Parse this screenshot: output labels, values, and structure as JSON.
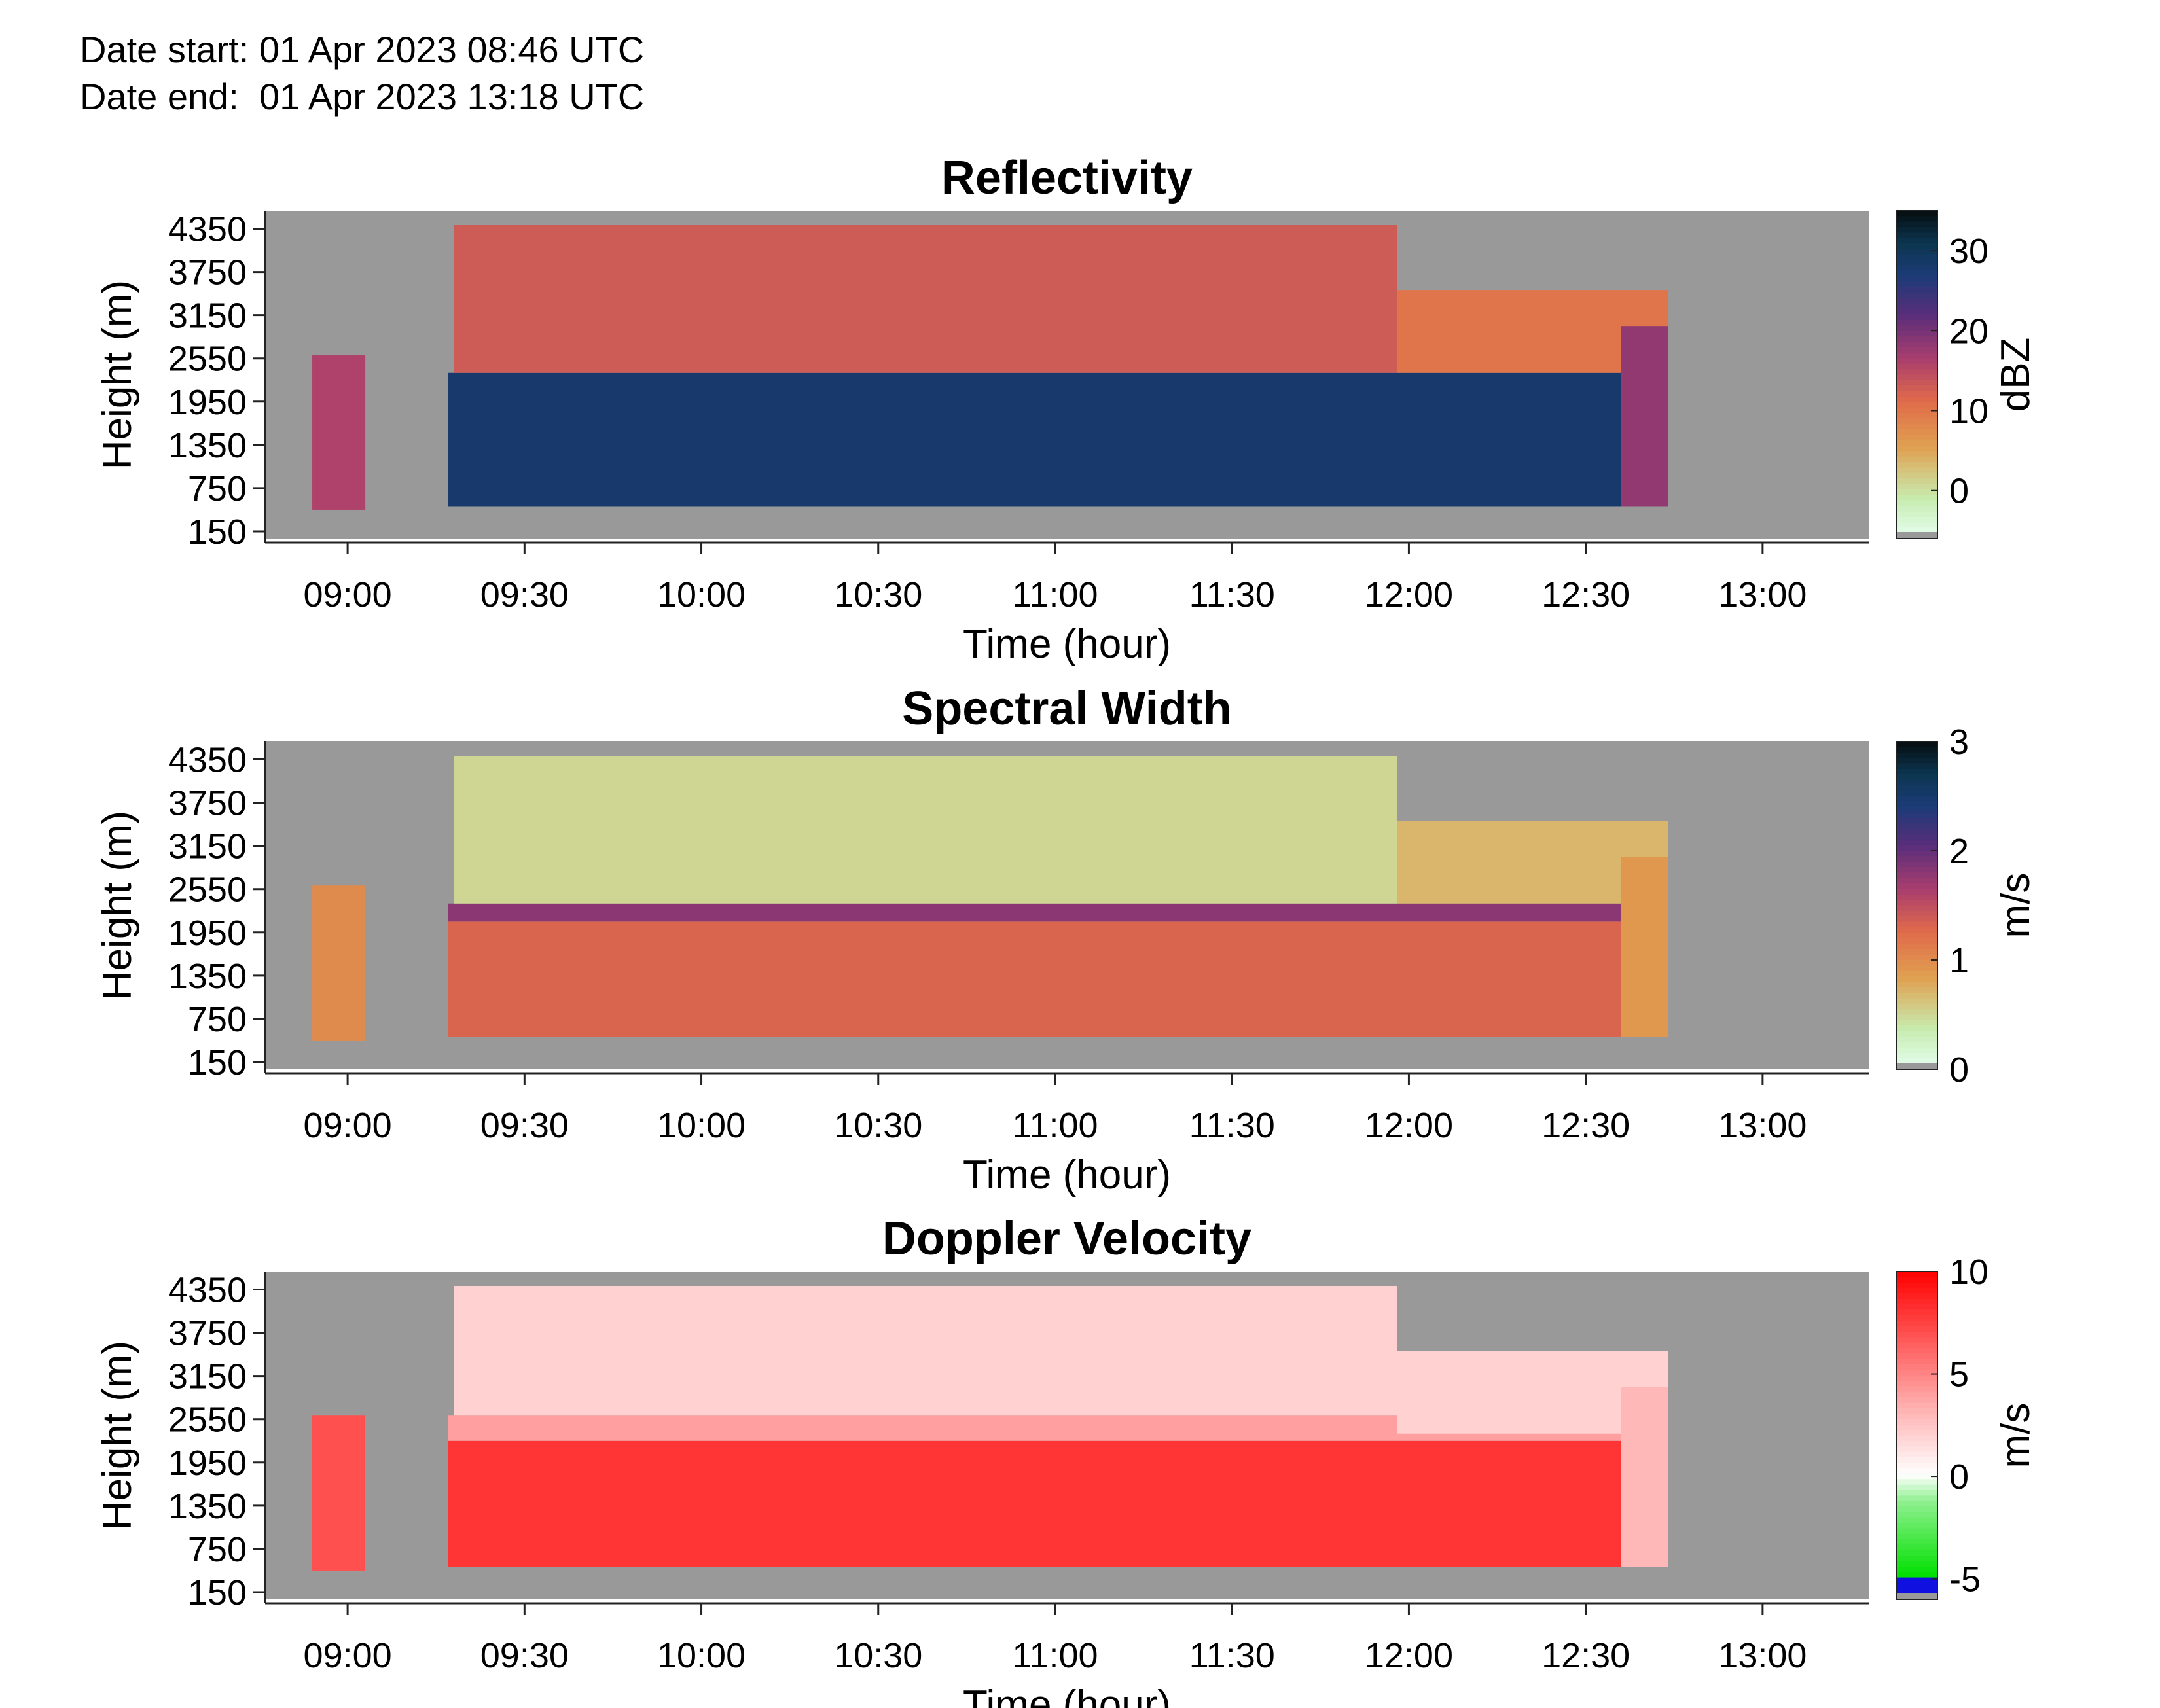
{
  "header": {
    "date_start": "Date start: 01 Apr 2023 08:46 UTC",
    "date_end": "Date end:  01 Apr 2023 13:18 UTC"
  },
  "chart_data": [
    {
      "type": "heatmap",
      "title": "Reflectivity",
      "xlabel": "Time (hour)",
      "ylabel": "Height (m)",
      "colorbar_label": "dBZ",
      "colormap": "thermal (light cyan → orange → red → purple → navy → black)",
      "clim": [
        -6,
        35
      ],
      "colorbar_ticks": [
        0,
        10,
        20,
        30
      ],
      "x_ticks": [
        "09:00",
        "09:30",
        "10:00",
        "10:30",
        "11:00",
        "11:30",
        "12:00",
        "12:30",
        "13:00"
      ],
      "y_ticks": [
        150,
        750,
        1350,
        1950,
        2550,
        3150,
        3750,
        4350
      ],
      "ylim": [
        50,
        4600
      ],
      "xlim": [
        "08:46",
        "13:18"
      ],
      "no_data_color": "#999999",
      "regions": [
        {
          "t_start": "08:54",
          "t_end": "09:03",
          "h_min": 450,
          "h_max": 2600,
          "value": 16
        },
        {
          "t_start": "09:17",
          "t_end": "12:36",
          "h_min": 500,
          "h_max": 2350,
          "value": 28
        },
        {
          "t_start": "09:18",
          "t_end": "11:58",
          "h_min": 2350,
          "h_max": 4400,
          "value": 13
        },
        {
          "t_start": "11:58",
          "t_end": "12:44",
          "h_min": 2350,
          "h_max": 3500,
          "value": 10
        },
        {
          "t_start": "12:36",
          "t_end": "12:44",
          "h_min": 500,
          "h_max": 3000,
          "value": 18
        }
      ]
    },
    {
      "type": "heatmap",
      "title": "Spectral Width",
      "xlabel": "Time (hour)",
      "ylabel": "Height (m)",
      "colorbar_label": "m/s",
      "colormap": "thermal (light cyan → orange → red → purple → navy → black)",
      "clim": [
        0,
        3
      ],
      "colorbar_ticks": [
        0,
        1,
        2,
        3
      ],
      "x_ticks": [
        "09:00",
        "09:30",
        "10:00",
        "10:30",
        "11:00",
        "11:30",
        "12:00",
        "12:30",
        "13:00"
      ],
      "y_ticks": [
        150,
        750,
        1350,
        1950,
        2550,
        3150,
        3750,
        4350
      ],
      "ylim": [
        50,
        4600
      ],
      "xlim": [
        "08:46",
        "13:18"
      ],
      "no_data_color": "#999999",
      "regions": [
        {
          "t_start": "08:54",
          "t_end": "09:03",
          "h_min": 450,
          "h_max": 2600,
          "value": 1.0
        },
        {
          "t_start": "09:17",
          "t_end": "12:36",
          "h_min": 500,
          "h_max": 2100,
          "value": 1.3
        },
        {
          "t_start": "09:17",
          "t_end": "12:36",
          "h_min": 2100,
          "h_max": 2350,
          "value": 1.8
        },
        {
          "t_start": "09:18",
          "t_end": "11:58",
          "h_min": 2350,
          "h_max": 4400,
          "value": 0.5
        },
        {
          "t_start": "11:58",
          "t_end": "12:44",
          "h_min": 2350,
          "h_max": 3500,
          "value": 0.7
        },
        {
          "t_start": "12:36",
          "t_end": "12:44",
          "h_min": 500,
          "h_max": 3000,
          "value": 0.9
        }
      ]
    },
    {
      "type": "heatmap",
      "title": "Doppler Velocity",
      "xlabel": "Time (hour)",
      "ylabel": "Height (m)",
      "colorbar_label": "m/s",
      "colormap": "blue → green → white → red",
      "clim": [
        -6,
        10
      ],
      "colorbar_ticks": [
        -5,
        0,
        5,
        10
      ],
      "x_ticks": [
        "09:00",
        "09:30",
        "10:00",
        "10:30",
        "11:00",
        "11:30",
        "12:00",
        "12:30",
        "13:00"
      ],
      "y_ticks": [
        150,
        750,
        1350,
        1950,
        2550,
        3150,
        3750,
        4350
      ],
      "ylim": [
        50,
        4600
      ],
      "xlim": [
        "08:46",
        "13:18"
      ],
      "no_data_color": "#999999",
      "regions": [
        {
          "t_start": "08:54",
          "t_end": "09:03",
          "h_min": 450,
          "h_max": 2600,
          "value": 7
        },
        {
          "t_start": "09:17",
          "t_end": "12:36",
          "h_min": 500,
          "h_max": 2250,
          "value": 8
        },
        {
          "t_start": "09:17",
          "t_end": "12:36",
          "h_min": 2250,
          "h_max": 2600,
          "value": 4
        },
        {
          "t_start": "09:18",
          "t_end": "11:58",
          "h_min": 2600,
          "h_max": 4400,
          "value": 2
        },
        {
          "t_start": "11:58",
          "t_end": "12:44",
          "h_min": 2350,
          "h_max": 3500,
          "value": 2
        },
        {
          "t_start": "12:36",
          "t_end": "12:44",
          "h_min": 500,
          "h_max": 3000,
          "value": 3
        }
      ]
    }
  ]
}
